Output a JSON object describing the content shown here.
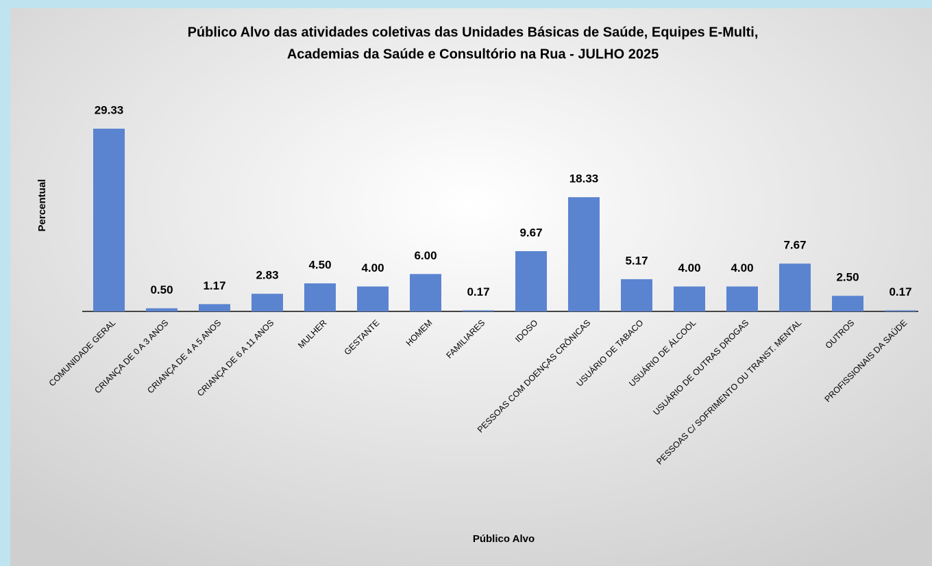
{
  "chart_data": {
    "type": "bar",
    "title": [
      "Público Alvo das atividades coletivas das Unidades Básicas de Saúde, Equipes E-Multi,",
      "Academias da Saúde e Consultório na Rua - JULHO 2025"
    ],
    "x_label": "Público Alvo",
    "y_label": "Percentual",
    "categories": [
      "COMUNIDADE GERAL",
      "CRIANÇA DE 0 A 3 ANOS",
      "CRIANÇA DE 4 A 5 ANOS",
      "CRIANÇA DE 6 A 11 ANOS",
      "MULHER",
      "GESTANTE",
      "HOMEM",
      "FAMILIARES",
      "IDOSO",
      "PESSOAS COM DOENÇAS CRÔNICAS",
      "USUÁRIO DE TABACO",
      "USUÁRIO DE ÁLCOOL",
      "USUÁRIO DE OUTRAS DROGAS",
      "PESSOAS C/ SOFRIMENTO OU TRANST. MENTAL",
      "OUTROS",
      "PROFISSIONAIS DA SAÚDE"
    ],
    "values": [
      29.33,
      0.5,
      1.17,
      2.83,
      4.5,
      4.0,
      6.0,
      0.17,
      9.67,
      18.33,
      5.17,
      4.0,
      4.0,
      7.67,
      2.5,
      0.17
    ],
    "value_labels": [
      "29.33",
      "0.50",
      "1.17",
      "2.83",
      "4.50",
      "4.00",
      "6.00",
      "0.17",
      "9.67",
      "18.33",
      "5.17",
      "4.00",
      "4.00",
      "7.67",
      "2.50",
      "0.17"
    ],
    "color": "#5b84d0"
  }
}
